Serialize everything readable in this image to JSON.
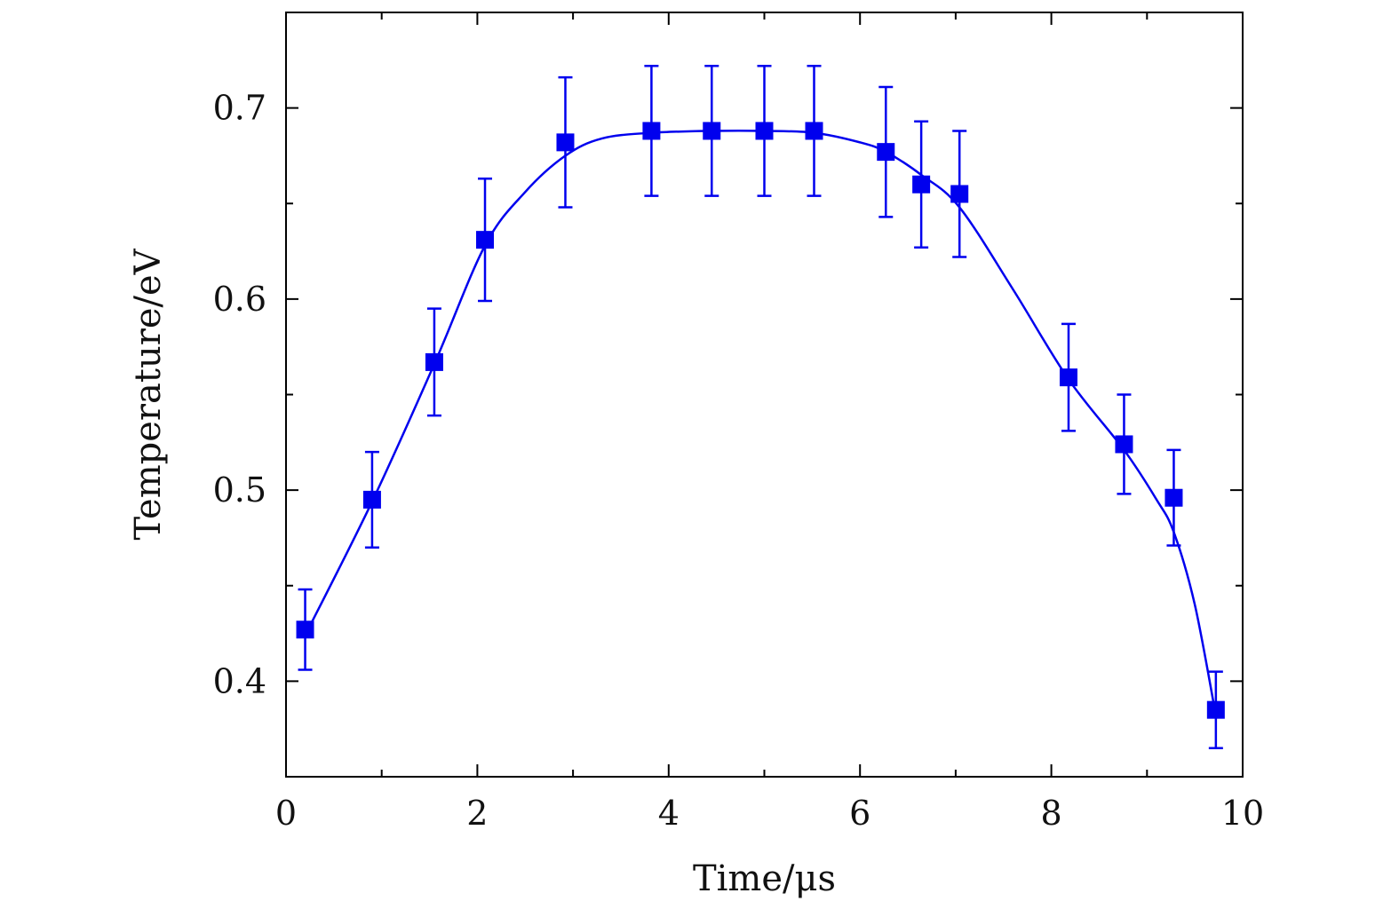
{
  "chart_data": {
    "type": "scatter",
    "title": "",
    "xlabel": "Time/μs",
    "ylabel": "Temperature/eV",
    "xlim": [
      0,
      10
    ],
    "ylim": [
      0.35,
      0.75
    ],
    "x_ticks": [
      0,
      2,
      4,
      6,
      8,
      10
    ],
    "x_tick_labels": [
      "0",
      "2",
      "4",
      "6",
      "8",
      "10"
    ],
    "y_ticks": [
      0.4,
      0.5,
      0.6,
      0.7
    ],
    "y_tick_labels": [
      "0.4",
      "0.5",
      "0.6",
      "0.7"
    ],
    "grid": false,
    "series": [
      {
        "name": "Temperature",
        "color": "#0000ee",
        "marker": "square",
        "x": [
          0.2,
          0.9,
          1.55,
          2.08,
          2.92,
          3.82,
          4.45,
          5.0,
          5.52,
          6.27,
          6.64,
          7.04,
          8.18,
          8.76,
          9.28,
          9.72
        ],
        "y": [
          0.427,
          0.495,
          0.567,
          0.631,
          0.682,
          0.688,
          0.688,
          0.688,
          0.688,
          0.677,
          0.66,
          0.655,
          0.559,
          0.524,
          0.496,
          0.385
        ],
        "yerr": [
          0.021,
          0.025,
          0.028,
          0.032,
          0.034,
          0.034,
          0.034,
          0.034,
          0.034,
          0.034,
          0.033,
          0.033,
          0.028,
          0.026,
          0.025,
          0.02
        ]
      }
    ],
    "fit_curve": {
      "name": "smooth fit",
      "color": "#0000ee",
      "x": [
        0.2,
        0.9,
        1.55,
        2.08,
        2.5,
        2.92,
        3.3,
        3.82,
        4.45,
        5.0,
        5.52,
        6.0,
        6.27,
        6.64,
        7.04,
        7.6,
        8.18,
        8.76,
        9.1,
        9.28,
        9.5,
        9.72
      ],
      "y": [
        0.424,
        0.494,
        0.566,
        0.628,
        0.656,
        0.675,
        0.684,
        0.687,
        0.688,
        0.688,
        0.687,
        0.682,
        0.677,
        0.665,
        0.648,
        0.605,
        0.558,
        0.521,
        0.495,
        0.478,
        0.44,
        0.382
      ]
    }
  }
}
